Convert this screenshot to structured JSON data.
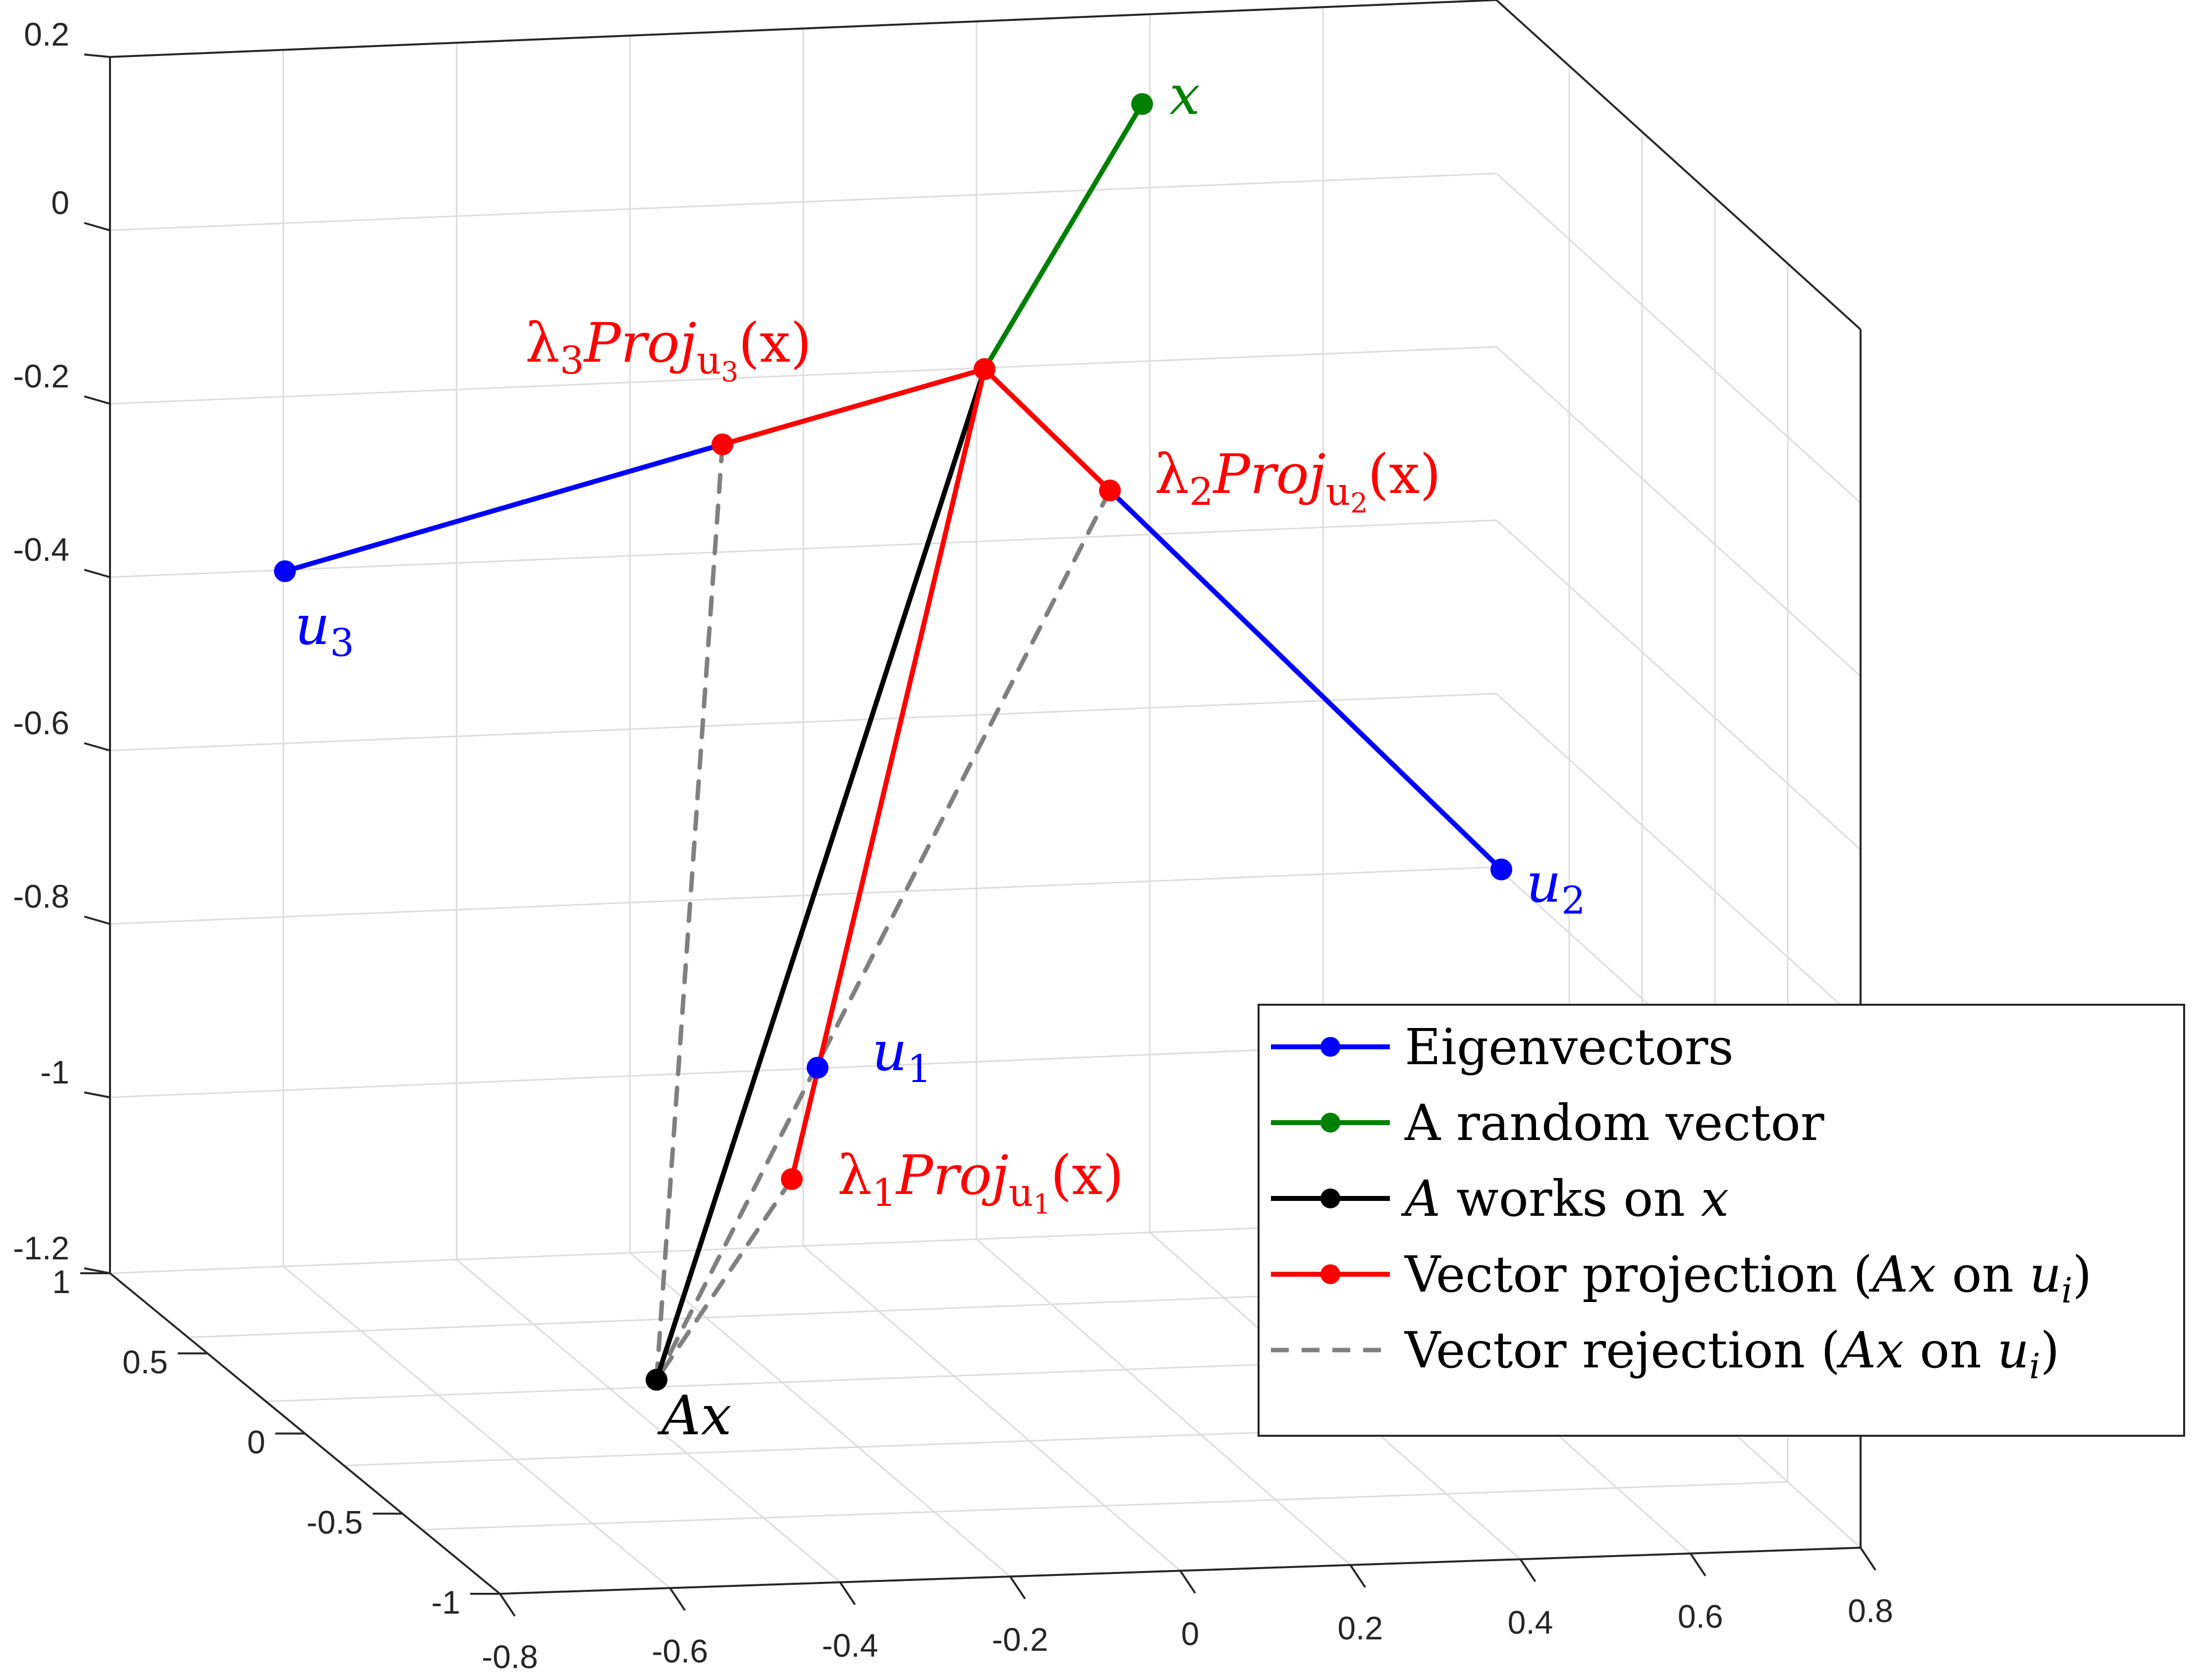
{
  "chart_data": {
    "type": "line3d",
    "grid": true,
    "box": true,
    "legend_position": "bottom-right",
    "zlim": [
      -1.2,
      0.2
    ],
    "z_ticks": [
      "0.2",
      "0",
      "-0.2",
      "-0.4",
      "-0.6",
      "-0.8",
      "-1",
      "-1.2"
    ],
    "y_ticks": [
      "1",
      "0.5",
      "0",
      "-0.5",
      "-1"
    ],
    "x_ticks": [
      "-0.8",
      "-0.6",
      "-0.4",
      "-0.2",
      "0",
      "0.2",
      "0.4",
      "0.6",
      "0.8"
    ],
    "colors": {
      "eigenvectors": "#0000ff",
      "random_vector": "#008000",
      "A_on_x": "#000000",
      "projection": "#ff0000",
      "rejection": "#808080"
    },
    "point_labels": {
      "x": "x",
      "Ax": "Ax",
      "u1": "u",
      "u1_sub": "1",
      "u2": "u",
      "u2_sub": "2",
      "u3": "u",
      "u3_sub": "3",
      "p1_lambda": "λ",
      "p1_lambda_sub": "1",
      "p1_proj": "Proj",
      "p1_proj_sub": "u",
      "p1_proj_subsub": "1",
      "p1_arg": "(x)",
      "p2_lambda": "λ",
      "p2_lambda_sub": "2",
      "p2_proj": "Proj",
      "p2_proj_sub": "u",
      "p2_proj_subsub": "2",
      "p2_arg": "(x)",
      "p3_lambda": "λ",
      "p3_lambda_sub": "3",
      "p3_proj": "Proj",
      "p3_proj_sub": "u",
      "p3_proj_subsub": "3",
      "p3_arg": "(x)"
    },
    "legend": [
      {
        "parts": [
          [
            "rm",
            "Eigenvectors"
          ]
        ],
        "color": "#0000ff",
        "style": "solid-marker"
      },
      {
        "parts": [
          [
            "rm",
            "A random vector"
          ]
        ],
        "color": "#008000",
        "style": "solid-marker"
      },
      {
        "parts": [
          [
            "it",
            "A"
          ],
          [
            "rm",
            " works on "
          ],
          [
            "it",
            "x"
          ]
        ],
        "color": "#000000",
        "style": "solid-marker"
      },
      {
        "parts": [
          [
            "rm",
            "Vector projection ("
          ],
          [
            "it",
            "Ax"
          ],
          [
            "rm",
            " on "
          ],
          [
            "it",
            "u"
          ],
          [
            "sub",
            "i"
          ],
          [
            "rm",
            ")"
          ]
        ],
        "color": "#ff0000",
        "style": "solid-marker"
      },
      {
        "parts": [
          [
            "rm",
            "Vector rejection ("
          ],
          [
            "it",
            "Ax"
          ],
          [
            "rm",
            " on "
          ],
          [
            "it",
            "u"
          ],
          [
            "sub",
            "i"
          ],
          [
            "rm",
            ")"
          ]
        ],
        "color": "#808080",
        "style": "dashed"
      }
    ]
  }
}
